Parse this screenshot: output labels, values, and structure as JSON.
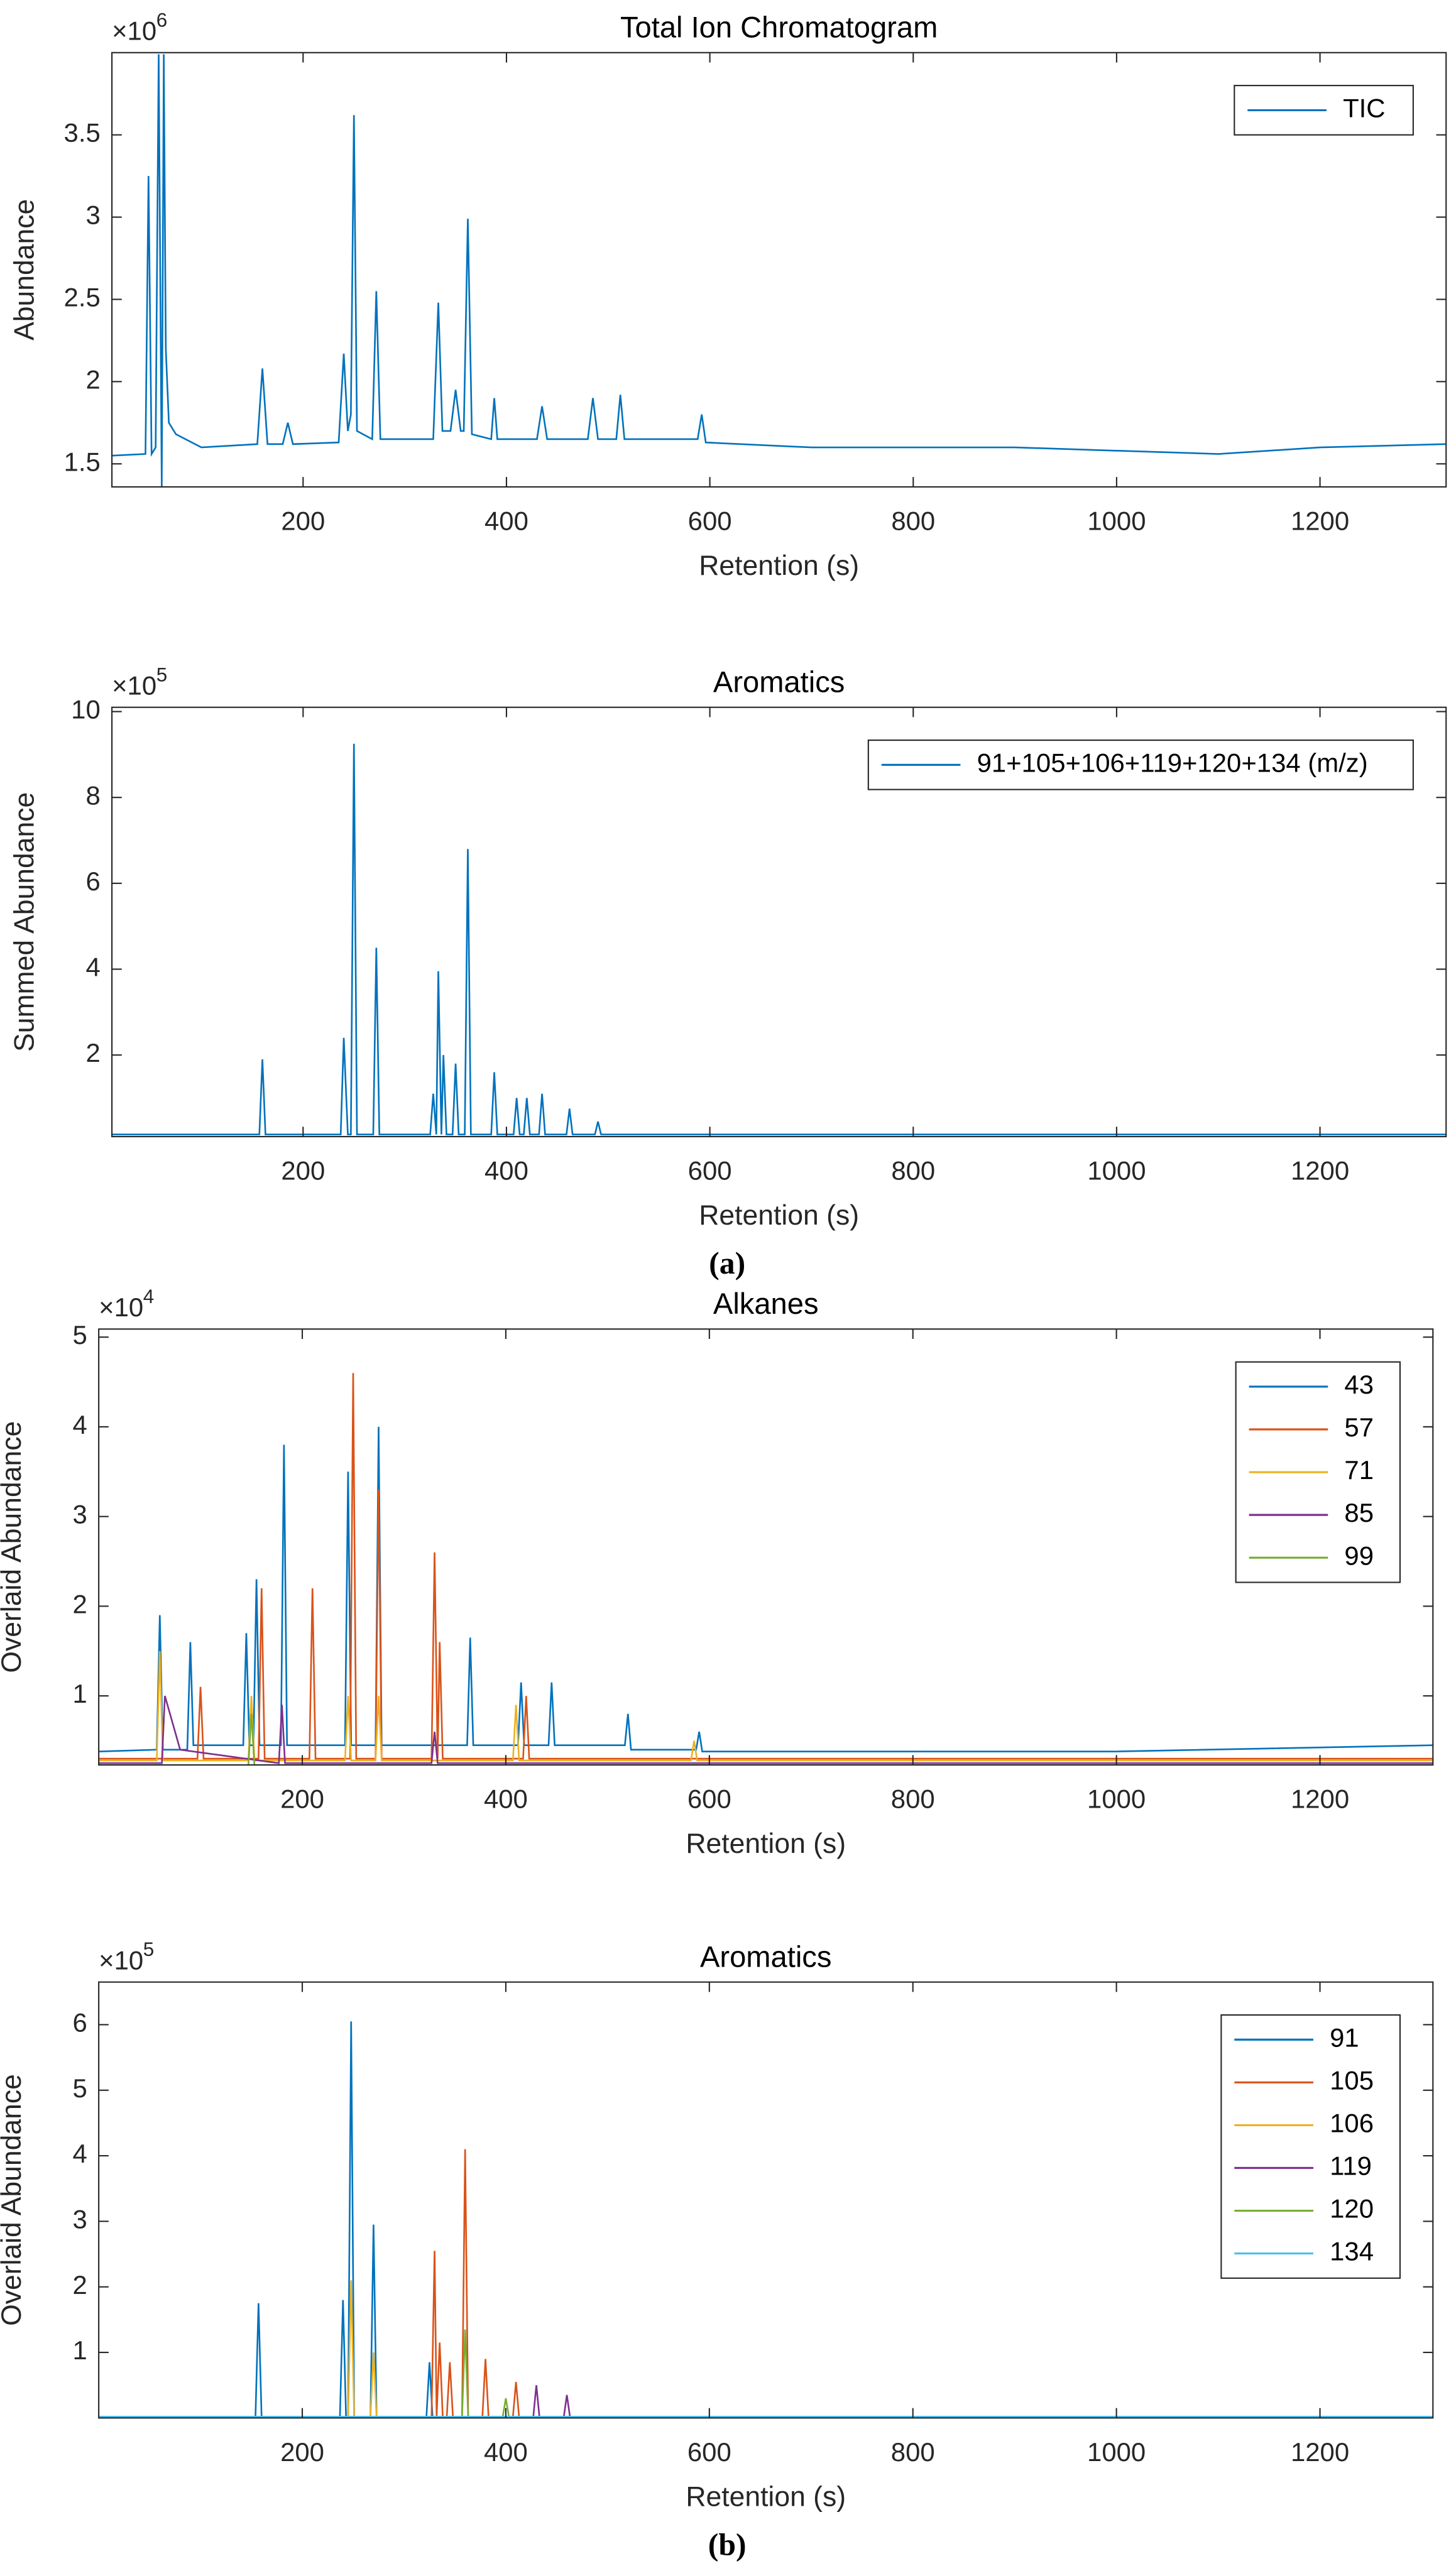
{
  "captions": [
    "(a)",
    "(b)"
  ],
  "chart_data": [
    {
      "type": "line",
      "title": "Total Ion Chromatogram",
      "x_label": "Retention (s)",
      "y_label": "Abundance",
      "multiplier": "×10",
      "exponent": 6,
      "xlim": [
        12,
        1324
      ],
      "ylim": [
        1.36,
        4.0
      ],
      "xticks": [
        200,
        400,
        600,
        800,
        1000,
        1200
      ],
      "yticks": [
        1.5,
        2,
        2.5,
        3,
        3.5
      ],
      "legend": "northeast",
      "series": [
        {
          "name": "TIC",
          "color": "#0072BD",
          "x": [
            12,
            45,
            48,
            51,
            55,
            58,
            61,
            63,
            65,
            68,
            75,
            100,
            155,
            160,
            165,
            180,
            185,
            190,
            235,
            240,
            244,
            247,
            250,
            253,
            268,
            272,
            276,
            328,
            333,
            337,
            345,
            350,
            355,
            358,
            362,
            366,
            385,
            388,
            391,
            430,
            435,
            440,
            480,
            485,
            490,
            508,
            512,
            516,
            588,
            592,
            596,
            700,
            900,
            1100,
            1200,
            1324
          ],
          "values": [
            1.55,
            1.56,
            3.25,
            1.56,
            1.6,
            3.99,
            1.36,
            3.99,
            2.2,
            1.75,
            1.68,
            1.6,
            1.62,
            2.08,
            1.62,
            1.62,
            1.75,
            1.62,
            1.63,
            2.17,
            1.7,
            1.8,
            3.62,
            1.7,
            1.65,
            2.55,
            1.65,
            1.65,
            2.48,
            1.7,
            1.7,
            1.95,
            1.7,
            1.7,
            2.99,
            1.68,
            1.65,
            1.9,
            1.65,
            1.65,
            1.85,
            1.65,
            1.65,
            1.9,
            1.65,
            1.65,
            1.92,
            1.65,
            1.65,
            1.8,
            1.63,
            1.6,
            1.6,
            1.56,
            1.6,
            1.62
          ]
        }
      ]
    },
    {
      "type": "line",
      "title": "Aromatics",
      "x_label": "Retention (s)",
      "y_label": "Summed Abundance",
      "multiplier": "×10",
      "exponent": 5,
      "xlim": [
        12,
        1324
      ],
      "ylim": [
        0.1,
        10.1
      ],
      "xticks": [
        200,
        400,
        600,
        800,
        1000,
        1200
      ],
      "yticks": [
        2,
        4,
        6,
        8,
        10
      ],
      "legend": "northeast",
      "series": [
        {
          "name": "91+105+106+119+120+134 (m/z)",
          "color": "#0072BD",
          "x": [
            12,
            157,
            160,
            163,
            237,
            240,
            244,
            247,
            250,
            253,
            269,
            272,
            275,
            325,
            328,
            331,
            333,
            336,
            338,
            341,
            347,
            350,
            353,
            359,
            362,
            365,
            385,
            388,
            391,
            407,
            410,
            413,
            417,
            420,
            423,
            432,
            435,
            438,
            459,
            462,
            465,
            487,
            490,
            493,
            1324
          ],
          "values": [
            0.15,
            0.15,
            1.9,
            0.15,
            0.15,
            2.4,
            0.15,
            0.15,
            9.25,
            0.15,
            0.15,
            4.5,
            0.15,
            0.15,
            1.1,
            0.15,
            3.95,
            0.15,
            2.0,
            0.15,
            0.15,
            1.8,
            0.15,
            0.15,
            6.8,
            0.15,
            0.15,
            1.6,
            0.15,
            0.15,
            1.0,
            0.15,
            0.15,
            1.0,
            0.15,
            0.15,
            1.1,
            0.15,
            0.15,
            0.75,
            0.15,
            0.15,
            0.45,
            0.15,
            0.15
          ]
        }
      ]
    },
    {
      "type": "line",
      "title": "Alkanes",
      "x_label": "Retention (s)",
      "y_label": "Overlaid Abundance",
      "multiplier": "×10",
      "exponent": 4,
      "xlim": [
        0,
        1311
      ],
      "ylim": [
        0.23,
        5.09
      ],
      "xticks": [
        200,
        400,
        600,
        800,
        1000,
        1200
      ],
      "yticks": [
        1,
        2,
        3,
        4,
        5
      ],
      "legend": "northeast",
      "series": [
        {
          "name": "43",
          "color": "#0072BD",
          "x": [
            0,
            57,
            60,
            63,
            87,
            90,
            93,
            142,
            145,
            148,
            152,
            155,
            158,
            179,
            182,
            185,
            242,
            245,
            248,
            272,
            275,
            278,
            362,
            365,
            368,
            412,
            415,
            418,
            442,
            445,
            448,
            517,
            520,
            523,
            587,
            590,
            593,
            800,
            1000,
            1311
          ],
          "values": [
            0.38,
            0.4,
            1.9,
            0.4,
            0.4,
            1.6,
            0.45,
            0.45,
            1.7,
            0.45,
            0.45,
            2.3,
            0.45,
            0.45,
            3.8,
            0.45,
            0.45,
            3.5,
            0.45,
            0.45,
            4.0,
            0.45,
            0.45,
            1.65,
            0.45,
            0.45,
            1.15,
            0.45,
            0.45,
            1.15,
            0.45,
            0.45,
            0.8,
            0.4,
            0.4,
            0.6,
            0.38,
            0.38,
            0.38,
            0.45
          ]
        },
        {
          "name": "57",
          "color": "#D95319",
          "x": [
            0,
            97,
            100,
            103,
            157,
            160,
            163,
            207,
            210,
            213,
            247,
            250,
            253,
            272,
            275,
            278,
            327,
            330,
            333,
            335,
            338,
            417,
            420,
            423,
            600,
            1311
          ],
          "values": [
            0.3,
            0.3,
            1.1,
            0.3,
            0.3,
            2.2,
            0.3,
            0.3,
            2.2,
            0.3,
            0.3,
            4.6,
            0.3,
            0.3,
            3.3,
            0.3,
            0.3,
            2.6,
            0.3,
            1.6,
            0.3,
            0.3,
            1.0,
            0.3,
            0.3,
            0.3
          ]
        },
        {
          "name": "71",
          "color": "#EDB120",
          "x": [
            0,
            57,
            60,
            63,
            147,
            150,
            153,
            242,
            245,
            248,
            272,
            275,
            278,
            407,
            410,
            413,
            582,
            585,
            588,
            1311
          ],
          "values": [
            0.28,
            0.28,
            1.5,
            0.28,
            0.28,
            1.0,
            0.28,
            0.28,
            1.0,
            0.28,
            0.28,
            1.0,
            0.28,
            0.28,
            0.9,
            0.28,
            0.28,
            0.5,
            0.28,
            0.28
          ]
        },
        {
          "name": "85",
          "color": "#7E2F8E",
          "x": [
            0,
            62,
            65,
            80,
            177,
            180,
            183,
            327,
            330,
            333,
            1311
          ],
          "values": [
            0.25,
            0.25,
            1.0,
            0.4,
            0.25,
            0.9,
            0.25,
            0.25,
            0.6,
            0.25,
            0.25
          ]
        },
        {
          "name": "99",
          "color": "#77AC30",
          "x": [
            0,
            147,
            150,
            153,
            1311
          ],
          "values": [
            0.22,
            0.22,
            0.8,
            0.22,
            0.22
          ]
        }
      ]
    },
    {
      "type": "line",
      "title": "Aromatics",
      "x_label": "Retention (s)",
      "y_label": "Overlaid Abundance",
      "multiplier": "×10",
      "exponent": 5,
      "xlim": [
        0,
        1311
      ],
      "ylim": [
        0,
        6.65
      ],
      "xticks": [
        200,
        400,
        600,
        800,
        1000,
        1200
      ],
      "yticks": [
        1,
        2,
        3,
        4,
        5,
        6
      ],
      "legend": "northeast",
      "series": [
        {
          "name": "91",
          "color": "#0072BD",
          "x": [
            0,
            154,
            157,
            160,
            237,
            240,
            243,
            245,
            248,
            251,
            267,
            270,
            273,
            322,
            325,
            328,
            1311
          ],
          "values": [
            0.02,
            0.02,
            1.75,
            0.02,
            0.02,
            1.8,
            0.02,
            0.02,
            6.05,
            0.02,
            0.02,
            2.95,
            0.02,
            0.02,
            0.85,
            0.02,
            0.02
          ]
        },
        {
          "name": "105",
          "color": "#D95319",
          "x": [
            0,
            327,
            330,
            332,
            335,
            338,
            342,
            345,
            348,
            357,
            360,
            363,
            377,
            380,
            383,
            407,
            410,
            413,
            1311
          ],
          "values": [
            0.02,
            0.02,
            2.55,
            0.02,
            1.15,
            0.02,
            0.02,
            0.85,
            0.02,
            0.02,
            4.1,
            0.02,
            0.02,
            0.9,
            0.02,
            0.02,
            0.55,
            0.02,
            0.02
          ]
        },
        {
          "name": "106",
          "color": "#EDB120",
          "x": [
            0,
            245,
            248,
            251,
            267,
            270,
            273,
            1311
          ],
          "values": [
            0.02,
            0.02,
            2.1,
            0.02,
            0.02,
            1.0,
            0.02,
            0.02
          ]
        },
        {
          "name": "119",
          "color": "#7E2F8E",
          "x": [
            0,
            427,
            430,
            433,
            457,
            460,
            463,
            1311
          ],
          "values": [
            0.02,
            0.02,
            0.5,
            0.02,
            0.02,
            0.35,
            0.02,
            0.02
          ]
        },
        {
          "name": "120",
          "color": "#77AC30",
          "x": [
            0,
            357,
            360,
            363,
            397,
            400,
            403,
            1311
          ],
          "values": [
            0.02,
            0.02,
            1.35,
            0.02,
            0.02,
            0.3,
            0.02,
            0.02
          ]
        },
        {
          "name": "134",
          "color": "#4DBEEE",
          "x": [
            0,
            1311
          ],
          "values": [
            0.02,
            0.02
          ]
        }
      ]
    }
  ]
}
